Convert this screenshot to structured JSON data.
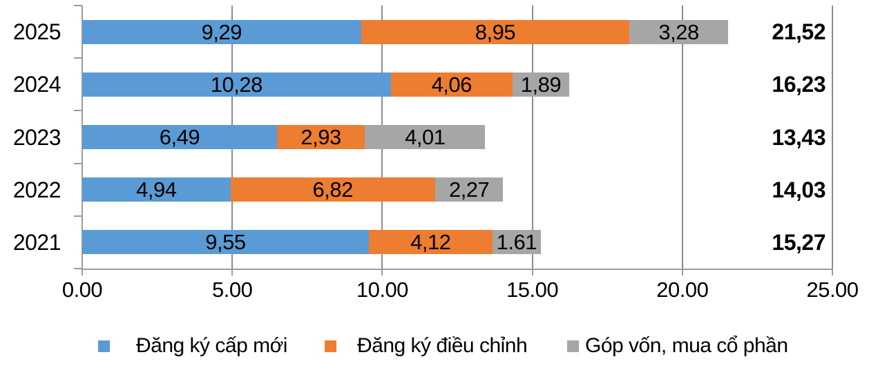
{
  "chart_data": {
    "type": "bar",
    "orientation": "horizontal",
    "stacked": true,
    "grid": true,
    "legend_position": "bottom",
    "xlim": [
      0,
      25
    ],
    "categories": [
      "2025",
      "2024",
      "2023",
      "2022",
      "2021"
    ],
    "series": [
      {
        "name": "Đăng ký cấp mới",
        "color": "#5B9BD5",
        "values": [
          9.29,
          10.28,
          6.49,
          4.94,
          9.55
        ],
        "labels": [
          "9,29",
          "10,28",
          "6,49",
          "4,94",
          "9,55"
        ]
      },
      {
        "name": "Đăng ký điều chỉnh",
        "color": "#ED7D31",
        "values": [
          8.95,
          4.06,
          2.93,
          6.82,
          4.12
        ],
        "labels": [
          "8,95",
          "4,06",
          "2,93",
          "6,82",
          "4,12"
        ]
      },
      {
        "name": "Góp vốn, mua cổ phần",
        "color": "#A6A6A6",
        "values": [
          3.28,
          1.89,
          4.01,
          2.27,
          1.61
        ],
        "labels": [
          "3,28",
          "1,89",
          "4,01",
          "2,27",
          "1.61"
        ]
      }
    ],
    "totals": {
      "values": [
        21.52,
        16.23,
        13.43,
        14.03,
        15.27
      ],
      "labels": [
        "21,52",
        "16,23",
        "13,43",
        "14,03",
        "15,27"
      ]
    },
    "x_ticks": {
      "values": [
        0,
        5,
        10,
        15,
        20,
        25
      ],
      "labels": [
        "0.00",
        "5.00",
        "10.00",
        "15.00",
        "20.00",
        "25.00"
      ]
    }
  },
  "colors": {
    "background": "#FFFFFF",
    "axis": "#9B9B9B",
    "gridline": "#8C8C8C",
    "text": "#000000"
  }
}
